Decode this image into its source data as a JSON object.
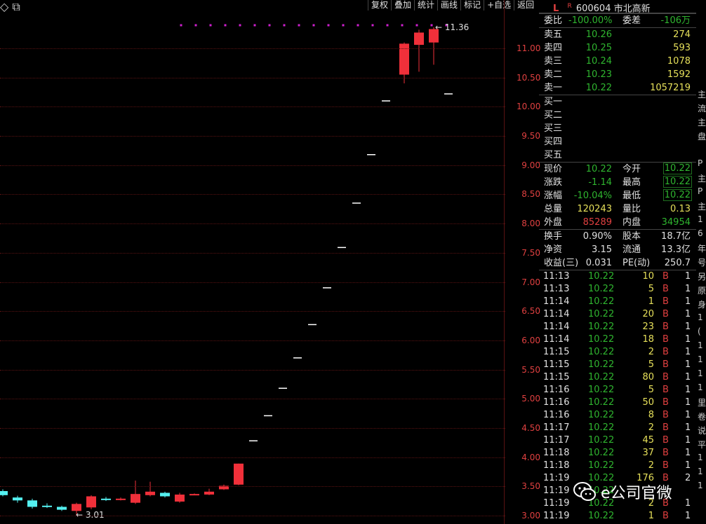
{
  "toolbar": {
    "buttons": [
      "复权",
      "叠加",
      "统计",
      "画线",
      "标记",
      "+自选",
      "返回"
    ],
    "icons": [
      "diamond-icon",
      "copy-icon"
    ]
  },
  "chart_data": {
    "type": "candlestick",
    "y_ticks": [
      "11.00",
      "10.50",
      "10.00",
      "9.50",
      "9.00",
      "8.50",
      "8.00",
      "7.50",
      "7.00",
      "6.50",
      "6.00",
      "5.50",
      "5.00",
      "4.50",
      "4.00",
      "3.50",
      "3.00"
    ],
    "ylim": [
      2.95,
      11.45
    ],
    "high_label": "11.36",
    "low_label": "3.01",
    "colors": {
      "up": "#f0303a",
      "down": "#54f0f0",
      "limit": "#ffffff",
      "marker": "#d020d0",
      "grid": "#5a1212",
      "axis": "#e04040"
    },
    "candles": [
      {
        "o": 3.42,
        "c": 3.35,
        "h": 3.45,
        "l": 3.33
      },
      {
        "o": 3.31,
        "c": 3.26,
        "h": 3.34,
        "l": 3.22
      },
      {
        "o": 3.26,
        "c": 3.15,
        "h": 3.29,
        "l": 3.12
      },
      {
        "o": 3.17,
        "c": 3.16,
        "h": 3.21,
        "l": 3.13
      },
      {
        "o": 3.15,
        "c": 3.1,
        "h": 3.17,
        "l": 3.08
      },
      {
        "o": 3.08,
        "c": 3.2,
        "h": 3.22,
        "l": 3.01
      },
      {
        "o": 3.14,
        "c": 3.33,
        "h": 3.35,
        "l": 3.11
      },
      {
        "o": 3.29,
        "c": 3.28,
        "h": 3.32,
        "l": 3.25
      },
      {
        "o": 3.27,
        "c": 3.29,
        "h": 3.31,
        "l": 3.26
      },
      {
        "o": 3.22,
        "c": 3.37,
        "h": 3.6,
        "l": 3.2
      },
      {
        "o": 3.35,
        "c": 3.41,
        "h": 3.58,
        "l": 3.33
      },
      {
        "o": 3.39,
        "c": 3.33,
        "h": 3.41,
        "l": 3.31
      },
      {
        "o": 3.24,
        "c": 3.36,
        "h": 3.39,
        "l": 3.22
      },
      {
        "o": 3.36,
        "c": 3.37,
        "h": 3.38,
        "l": 3.35
      },
      {
        "o": 3.36,
        "c": 3.41,
        "h": 3.46,
        "l": 3.35
      },
      {
        "o": 3.45,
        "c": 3.51,
        "h": 3.53,
        "l": 3.44
      },
      {
        "o": 3.53,
        "c": 3.89,
        "h": 3.89,
        "l": 3.52
      },
      {
        "o": 4.28,
        "c": 4.28,
        "h": 4.28,
        "l": 4.28
      },
      {
        "o": 4.71,
        "c": 4.71,
        "h": 4.71,
        "l": 4.71
      },
      {
        "o": 5.18,
        "c": 5.18,
        "h": 5.18,
        "l": 5.18
      },
      {
        "o": 5.7,
        "c": 5.7,
        "h": 5.7,
        "l": 5.7
      },
      {
        "o": 6.27,
        "c": 6.27,
        "h": 6.27,
        "l": 6.27
      },
      {
        "o": 6.9,
        "c": 6.9,
        "h": 6.9,
        "l": 6.9
      },
      {
        "o": 7.59,
        "c": 7.59,
        "h": 7.59,
        "l": 7.59
      },
      {
        "o": 8.35,
        "c": 8.35,
        "h": 8.35,
        "l": 8.35
      },
      {
        "o": 9.18,
        "c": 9.18,
        "h": 9.18,
        "l": 9.18
      },
      {
        "o": 10.1,
        "c": 10.1,
        "h": 10.1,
        "l": 10.1
      },
      {
        "o": 10.55,
        "c": 11.08,
        "h": 11.1,
        "l": 10.4
      },
      {
        "o": 11.06,
        "c": 11.27,
        "h": 11.32,
        "l": 10.6
      },
      {
        "o": 11.1,
        "c": 11.33,
        "h": 11.36,
        "l": 10.72
      },
      {
        "o": 10.22,
        "c": 10.22,
        "h": 10.22,
        "l": 10.22
      }
    ]
  },
  "panel": {
    "marker_l": "L",
    "marker_r": "R",
    "code": "600604",
    "name": "市北高新",
    "webi_label": "委比",
    "webi": "-100.00%",
    "weicha_label": "委差",
    "weicha": "-106万",
    "sells": [
      {
        "label": "卖五",
        "price": "10.26",
        "vol": "274"
      },
      {
        "label": "卖四",
        "price": "10.25",
        "vol": "593"
      },
      {
        "label": "卖三",
        "price": "10.24",
        "vol": "1078"
      },
      {
        "label": "卖二",
        "price": "10.23",
        "vol": "1592"
      },
      {
        "label": "卖一",
        "price": "10.22",
        "vol": "1057219"
      }
    ],
    "buys": [
      "买一",
      "买二",
      "买三",
      "买四",
      "买五"
    ],
    "quote": [
      {
        "l1": "现价",
        "v1": "10.22",
        "l2": "今开",
        "v2": "10.22"
      },
      {
        "l1": "涨跌",
        "v1": "-1.14",
        "l2": "最高",
        "v2": "10.22"
      },
      {
        "l1": "涨幅",
        "v1": "-10.04%",
        "l2": "最低",
        "v2": "10.22"
      },
      {
        "l1": "总量",
        "v1": "120243",
        "l2": "量比",
        "v2": "0.13"
      },
      {
        "l1": "外盘",
        "v1": "85289",
        "l2": "内盘",
        "v2": "34954"
      }
    ],
    "fund": [
      {
        "l1": "换手",
        "v1": "0.90%",
        "l2": "股本",
        "v2": "18.7亿"
      },
      {
        "l1": "净资",
        "v1": "3.15",
        "l2": "流通",
        "v2": "13.3亿"
      },
      {
        "l1": "收益(三)",
        "v1": "0.031",
        "l2": "PE(动)",
        "v2": "250.7"
      }
    ],
    "trades": [
      {
        "t": "11:13",
        "p": "10.22",
        "v": "10",
        "s": "B",
        "n": "1"
      },
      {
        "t": "11:13",
        "p": "10.22",
        "v": "5",
        "s": "B",
        "n": "1"
      },
      {
        "t": "11:14",
        "p": "10.22",
        "v": "1",
        "s": "B",
        "n": "1"
      },
      {
        "t": "11:14",
        "p": "10.22",
        "v": "20",
        "s": "B",
        "n": "1"
      },
      {
        "t": "11:14",
        "p": "10.22",
        "v": "23",
        "s": "B",
        "n": "1"
      },
      {
        "t": "11:14",
        "p": "10.22",
        "v": "18",
        "s": "B",
        "n": "1"
      },
      {
        "t": "11:15",
        "p": "10.22",
        "v": "2",
        "s": "B",
        "n": "1"
      },
      {
        "t": "11:15",
        "p": "10.22",
        "v": "5",
        "s": "B",
        "n": "1"
      },
      {
        "t": "11:15",
        "p": "10.22",
        "v": "80",
        "s": "B",
        "n": "1"
      },
      {
        "t": "11:16",
        "p": "10.22",
        "v": "5",
        "s": "B",
        "n": "1"
      },
      {
        "t": "11:16",
        "p": "10.22",
        "v": "50",
        "s": "B",
        "n": "1"
      },
      {
        "t": "11:16",
        "p": "10.22",
        "v": "8",
        "s": "B",
        "n": "1"
      },
      {
        "t": "11:17",
        "p": "10.22",
        "v": "2",
        "s": "B",
        "n": "1"
      },
      {
        "t": "11:17",
        "p": "10.22",
        "v": "45",
        "s": "B",
        "n": "1"
      },
      {
        "t": "11:18",
        "p": "10.22",
        "v": "37",
        "s": "B",
        "n": "1"
      },
      {
        "t": "11:18",
        "p": "10.22",
        "v": "2",
        "s": "B",
        "n": "1"
      },
      {
        "t": "11:19",
        "p": "10.22",
        "v": "176",
        "s": "B",
        "n": "2"
      },
      {
        "t": "11:19",
        "p": "10.22",
        "v": "",
        "s": "",
        "n": ""
      },
      {
        "t": "11:19",
        "p": "10.22",
        "v": "2",
        "s": "B",
        "n": "1"
      },
      {
        "t": "11:19",
        "p": "10.22",
        "v": "1",
        "s": "B",
        "n": "1"
      }
    ]
  },
  "edge_chars": [
    "主",
    "流",
    "主",
    "盘",
    "",
    "P",
    "主",
    "P",
    "主",
    "1",
    "6",
    "年",
    "号",
    "另",
    "原",
    "身",
    "1",
    "(",
    "1",
    "1",
    "1",
    "1",
    "里",
    "卷",
    "说",
    "平",
    "1",
    "1",
    "1"
  ],
  "watermark": {
    "text": "e公司官微"
  }
}
